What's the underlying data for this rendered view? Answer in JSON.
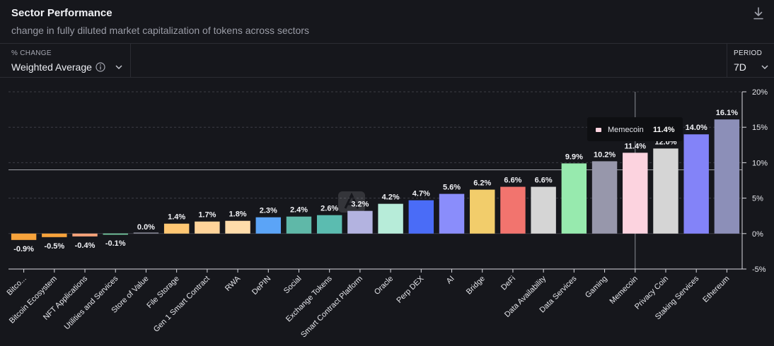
{
  "header": {
    "title": "Sector Performance",
    "subtitle": "change in fully diluted market capitalization of tokens across sectors",
    "download_icon": "download-icon"
  },
  "controls": {
    "metric_label": "% CHANGE",
    "metric_value": "Weighted Average",
    "info_icon": "info-icon",
    "period_label": "PERIOD",
    "period_value": "7D"
  },
  "tooltip": {
    "series": "Memecoin",
    "value": "11.4%",
    "swatch_color": "#fcd3df"
  },
  "chart_data": {
    "type": "bar",
    "title": "Sector Performance",
    "ylim": [
      -5,
      20
    ],
    "yticks": [
      "20%",
      "15%",
      "10%",
      "5%",
      "0%",
      "-5%"
    ],
    "grid": true,
    "reference_line": 9,
    "categories": [
      "Bitco...",
      "Bitcoin Ecosystem",
      "NFT Applications",
      "Utilities and Services",
      "Store of Value",
      "File Storage",
      "Gen 1 Smart Contract",
      "RWA",
      "DePIN",
      "Social",
      "Exchange Tokens",
      "Smart Contract Platform",
      "Oracle",
      "Perp DEX",
      "AI",
      "Bridge",
      "DeFi",
      "Data Availability",
      "Data Services",
      "Gaming",
      "Memecoin",
      "Privacy Coin",
      "Staking Services",
      "Ethereum"
    ],
    "values": [
      -0.9,
      -0.5,
      -0.4,
      -0.1,
      0.0,
      1.4,
      1.7,
      1.8,
      2.3,
      2.4,
      2.6,
      3.2,
      4.2,
      4.7,
      5.6,
      6.2,
      6.6,
      6.6,
      9.9,
      10.2,
      11.4,
      12.0,
      14.0,
      16.1
    ],
    "labels": [
      "-0.9%",
      "-0.5%",
      "-0.4%",
      "-0.1%",
      "0.0%",
      "1.4%",
      "1.7%",
      "1.8%",
      "2.3%",
      "2.4%",
      "2.6%",
      "3.2%",
      "4.2%",
      "4.7%",
      "5.6%",
      "6.2%",
      "6.6%",
      "6.6%",
      "9.9%",
      "10.2%",
      "11.4%",
      "12.0%",
      "14.0%",
      "16.1%"
    ],
    "colors": [
      "#f7a33b",
      "#f7a33b",
      "#f7a37a",
      "#7ee0b0",
      "#8b8b9a",
      "#ffc773",
      "#ffd49a",
      "#ffdcaa",
      "#5ba4f7",
      "#5fb8a8",
      "#5bbcb0",
      "#b3b3e0",
      "#b7ecd9",
      "#4a6cf7",
      "#8a8dfb",
      "#f2cd6b",
      "#f2746e",
      "#d5d5d5",
      "#97eaae",
      "#9797ab",
      "#fcd3df",
      "#d5d5d5",
      "#8383f8",
      "#8c8fb8"
    ],
    "highlighted": "Memecoin"
  }
}
